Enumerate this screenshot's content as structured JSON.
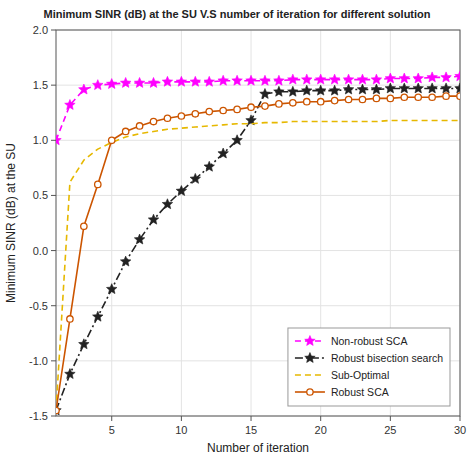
{
  "chart_data": {
    "type": "line",
    "title": "Minimum SINR (dB) at the SU V.S number of iteration for different solution",
    "x_label": "Number of iteration",
    "y_label": "Minimum SINR (dB) at the SU",
    "x": [
      1,
      2,
      3,
      4,
      5,
      6,
      7,
      8,
      9,
      10,
      11,
      12,
      13,
      14,
      15,
      16,
      17,
      18,
      19,
      20,
      21,
      22,
      23,
      24,
      25,
      26,
      27,
      28,
      29,
      30
    ],
    "series": [
      {
        "name": "Non-robust SCA",
        "color": "#FF00FF",
        "line_style": "dashed",
        "marker": "star",
        "values": [
          1.0,
          1.32,
          1.46,
          1.5,
          1.51,
          1.52,
          1.52,
          1.52,
          1.53,
          1.53,
          1.53,
          1.53,
          1.54,
          1.54,
          1.54,
          1.54,
          1.54,
          1.55,
          1.55,
          1.55,
          1.55,
          1.55,
          1.55,
          1.55,
          1.56,
          1.56,
          1.56,
          1.57,
          1.57,
          1.58
        ]
      },
      {
        "name": "Robust bisection search",
        "color": "#222222",
        "line_style": "dash-dot",
        "marker": "star",
        "values": [
          -1.45,
          -1.12,
          -0.85,
          -0.6,
          -0.35,
          -0.1,
          0.1,
          0.28,
          0.42,
          0.54,
          0.65,
          0.76,
          0.88,
          1.0,
          1.18,
          1.42,
          1.44,
          1.44,
          1.45,
          1.45,
          1.45,
          1.46,
          1.46,
          1.46,
          1.47,
          1.47,
          1.47,
          1.47,
          1.47,
          1.47
        ]
      },
      {
        "name": "Sub-Optimal",
        "color": "#E6B800",
        "line_style": "dashed",
        "marker": "none",
        "values": [
          -1.45,
          0.62,
          0.82,
          0.92,
          0.98,
          1.03,
          1.06,
          1.08,
          1.1,
          1.11,
          1.12,
          1.13,
          1.14,
          1.15,
          1.15,
          1.16,
          1.16,
          1.17,
          1.17,
          1.17,
          1.17,
          1.17,
          1.17,
          1.17,
          1.18,
          1.18,
          1.18,
          1.18,
          1.18,
          1.18
        ]
      },
      {
        "name": "Robust SCA",
        "color": "#CC5500",
        "line_style": "solid",
        "marker": "open-circle",
        "values": [
          -1.45,
          -0.62,
          0.22,
          0.6,
          1.0,
          1.08,
          1.13,
          1.17,
          1.2,
          1.22,
          1.24,
          1.26,
          1.27,
          1.28,
          1.3,
          1.31,
          1.33,
          1.34,
          1.35,
          1.35,
          1.36,
          1.37,
          1.37,
          1.38,
          1.38,
          1.39,
          1.39,
          1.39,
          1.4,
          1.4
        ]
      }
    ],
    "xlim": [
      1,
      30
    ],
    "ylim": [
      -1.5,
      2.0
    ],
    "xticks": [
      5,
      10,
      15,
      20,
      25,
      30
    ],
    "yticks": [
      -1.5,
      {
        "value": -1.0,
        "label": "-1.0"
      },
      -0.5,
      {
        "value": 0.0,
        "label": "0.0"
      },
      0.5,
      {
        "value": 1.0,
        "label": "1.0"
      },
      1.5,
      {
        "value": 2.0,
        "label": "2.0"
      }
    ],
    "grid": true,
    "legend": "lower right"
  }
}
